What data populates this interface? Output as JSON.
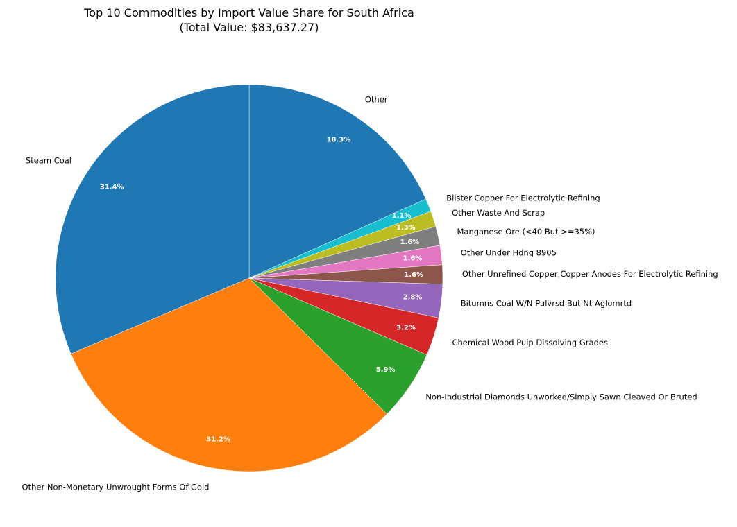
{
  "chart_data": {
    "type": "pie",
    "title": "Top 10 Commodities by Import Value Share for South Africa",
    "subtitle": "(Total Value: $83,637.27)",
    "start_angle_deg": 90,
    "direction": "clockwise",
    "slices": [
      {
        "label": "Other",
        "value": 18.3,
        "pct_label": "18.3%",
        "color": "#1f77b4"
      },
      {
        "label": "Blister Copper For Electrolytic Refining",
        "value": 1.1,
        "pct_label": "1.1%",
        "color": "#17becf"
      },
      {
        "label": "Other Waste And Scrap",
        "value": 1.3,
        "pct_label": "1.3%",
        "color": "#bcbd22"
      },
      {
        "label": "Manganese Ore (<40 But >=35%)",
        "value": 1.6,
        "pct_label": "1.6%",
        "color": "#7f7f7f"
      },
      {
        "label": "Other Under Hdng 8905",
        "value": 1.6,
        "pct_label": "1.6%",
        "color": "#e377c2"
      },
      {
        "label": "Other Unrefined Copper;Copper Anodes For Electrolytic Refining",
        "value": 1.6,
        "pct_label": "1.6%",
        "color": "#8c564b"
      },
      {
        "label": "Bitumns Coal W/N Pulvrsd But Nt Aglomrtd",
        "value": 2.8,
        "pct_label": "2.8%",
        "color": "#9467bd"
      },
      {
        "label": "Chemical Wood Pulp Dissolving Grades",
        "value": 3.2,
        "pct_label": "3.2%",
        "color": "#d62728"
      },
      {
        "label": "Non-Industrial Diamonds Unworked/Simply Sawn Cleaved Or Bruted",
        "value": 5.9,
        "pct_label": "5.9%",
        "color": "#2ca02c"
      },
      {
        "label": "Other Non-Monetary Unwrought Forms Of Gold",
        "value": 31.2,
        "pct_label": "31.2%",
        "color": "#ff7f0e"
      },
      {
        "label": "Steam Coal",
        "value": 31.4,
        "pct_label": "31.4%",
        "color": "#1f77b4"
      }
    ]
  }
}
